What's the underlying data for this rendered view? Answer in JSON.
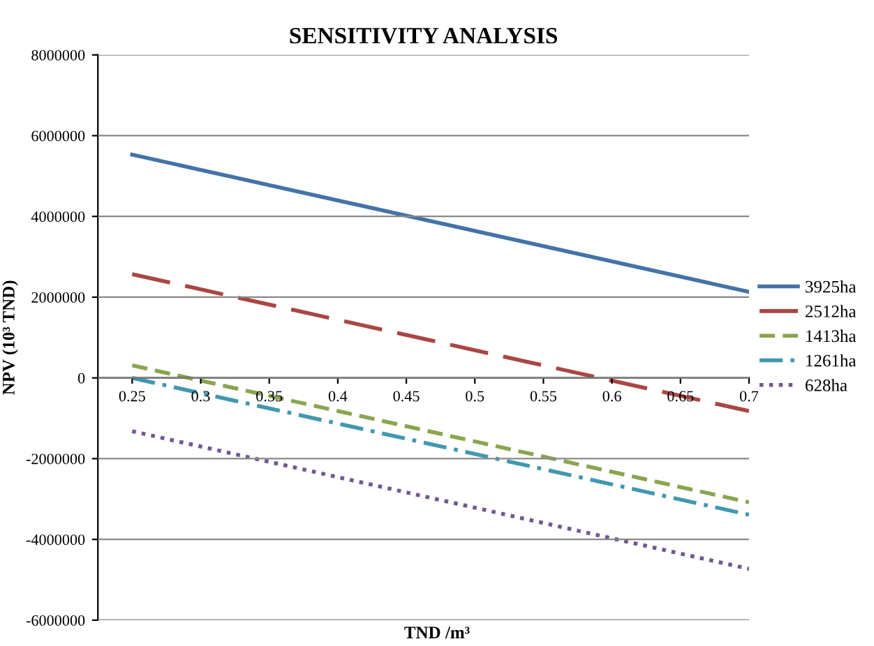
{
  "chart_data": {
    "type": "line",
    "title": "SENSITIVITY ANALYSIS",
    "xlabel": "TND /m³",
    "ylabel": "NPV (10³ TND)",
    "x": [
      0.25,
      0.7
    ],
    "series": [
      {
        "name": "3925ha",
        "color": "#4572a7",
        "line_style": "solid",
        "values": [
          5530000,
          2130000
        ]
      },
      {
        "name": "2512ha",
        "color": "#aa4643",
        "line_style": "longdash",
        "values": [
          2570000,
          -820000
        ]
      },
      {
        "name": "1413ha",
        "color": "#89a54e",
        "line_style": "dashed",
        "values": [
          310000,
          -3080000
        ]
      },
      {
        "name": "1261ha",
        "color": "#4198af",
        "line_style": "dashdot",
        "values": [
          0,
          -3390000
        ]
      },
      {
        "name": "628ha",
        "color": "#71588f",
        "line_style": "dotted",
        "values": [
          -1320000,
          -4730000
        ]
      }
    ],
    "xlim": [
      0.225,
      0.7
    ],
    "xticks": [
      0.25,
      0.3,
      0.35,
      0.4,
      0.45,
      0.5,
      0.55,
      0.6,
      0.65,
      0.7
    ],
    "ylim": [
      -6000000,
      8000000
    ],
    "yticks": [
      -6000000,
      -4000000,
      -2000000,
      0,
      2000000,
      4000000,
      6000000,
      8000000
    ],
    "grid": "y",
    "legend": "right",
    "marker": "none"
  }
}
